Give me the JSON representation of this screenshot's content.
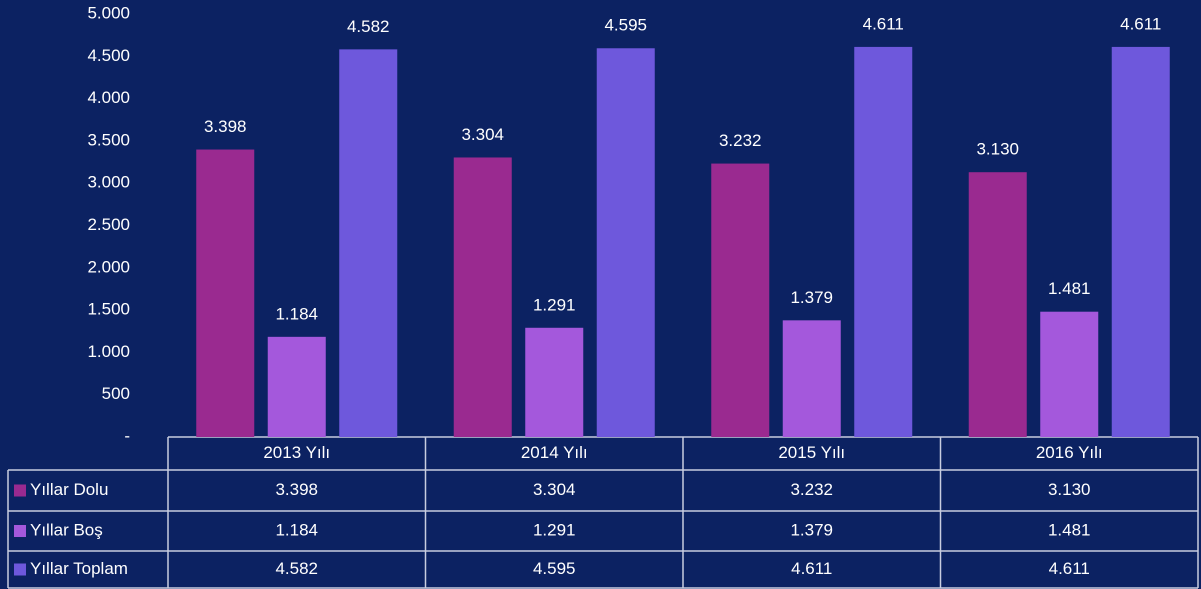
{
  "chart_data": {
    "type": "bar",
    "categories": [
      "2013 Yılı",
      "2014 Yılı",
      "2015 Yılı",
      "2016 Yılı"
    ],
    "series": [
      {
        "name": "Yıllar Dolu",
        "color": "#9a2a90",
        "values": [
          3398,
          3304,
          3232,
          3130
        ],
        "value_labels": [
          "3.398",
          "3.304",
          "3.232",
          "3.130"
        ]
      },
      {
        "name": "Yıllar Boş",
        "color": "#a458dc",
        "values": [
          1184,
          1291,
          1379,
          1481
        ],
        "value_labels": [
          "1.184",
          "1.291",
          "1.379",
          "1.481"
        ]
      },
      {
        "name": "Yıllar Toplam",
        "color": "#6e58dc",
        "values": [
          4582,
          4595,
          4611,
          4611
        ],
        "value_labels": [
          "4.582",
          "4.595",
          "4.611",
          "4.611"
        ]
      }
    ],
    "ylim": [
      0,
      5000
    ],
    "yticks": [
      {
        "value": 0,
        "label": "-"
      },
      500,
      {
        "value": 1000,
        "label": "1.000"
      },
      {
        "value": 1500,
        "label": "1.500"
      },
      {
        "value": 2000,
        "label": "2.000"
      },
      {
        "value": 2500,
        "label": "2.500"
      },
      {
        "value": 3000,
        "label": "3.000"
      },
      {
        "value": 3500,
        "label": "3.500"
      },
      {
        "value": 4000,
        "label": "4.000"
      },
      {
        "value": 4500,
        "label": "4.500"
      },
      {
        "value": 5000,
        "label": "5.000"
      }
    ],
    "grid": false
  }
}
